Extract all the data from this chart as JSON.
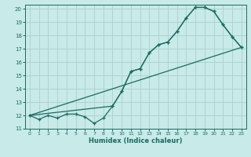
{
  "xlabel": "Humidex (Indice chaleur)",
  "ylabel": "",
  "bg_color": "#c8eae8",
  "grid_color": "#aed4d0",
  "line_color": "#1a6b60",
  "xlim": [
    -0.5,
    23.5
  ],
  "ylim": [
    11,
    20.3
  ],
  "xticks": [
    0,
    1,
    2,
    3,
    4,
    5,
    6,
    7,
    8,
    9,
    10,
    11,
    12,
    13,
    14,
    15,
    16,
    17,
    18,
    19,
    20,
    21,
    22,
    23
  ],
  "yticks": [
    11,
    12,
    13,
    14,
    15,
    16,
    17,
    18,
    19,
    20
  ],
  "series1_x": [
    0,
    1,
    2,
    3,
    4,
    5,
    6,
    7,
    8,
    9,
    10,
    11,
    12,
    13,
    14,
    15,
    16,
    17,
    18,
    19,
    20,
    21,
    22,
    23
  ],
  "series1_y": [
    12,
    11.7,
    12,
    11.8,
    12.1,
    12.1,
    11.9,
    11.4,
    11.8,
    12.7,
    13.8,
    15.3,
    15.5,
    16.7,
    17.3,
    17.5,
    18.3,
    19.3,
    20.1,
    20.1,
    19.8,
    18.8,
    17.9,
    17.1
  ],
  "series2_x": [
    0,
    23
  ],
  "series2_y": [
    12,
    17.1
  ],
  "series3_x": [
    0,
    9,
    10,
    11,
    12,
    13,
    14,
    15,
    16,
    17,
    18,
    19,
    20,
    21,
    22,
    23
  ],
  "series3_y": [
    12,
    12.7,
    13.8,
    15.3,
    15.5,
    16.7,
    17.3,
    17.5,
    18.3,
    19.3,
    20.1,
    20.1,
    19.8,
    18.8,
    17.9,
    17.1
  ]
}
